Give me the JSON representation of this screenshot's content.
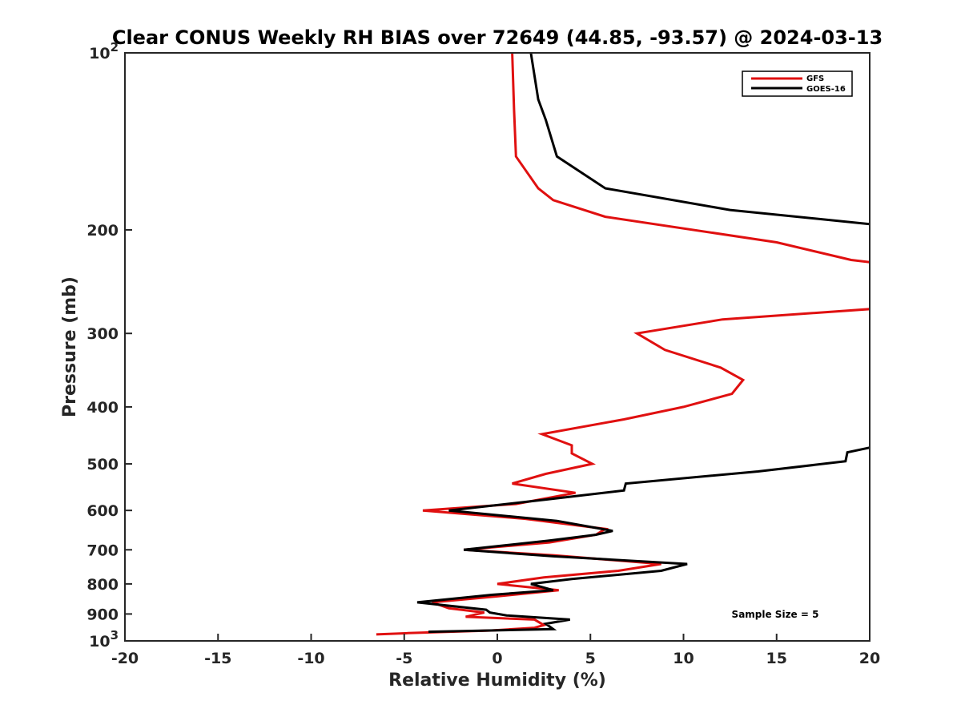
{
  "chart_data": {
    "type": "line",
    "title": "Clear CONUS Weekly RH BIAS over 72649 (44.85, -93.57) @ 2024-03-13",
    "xlabel": "Relative Humidity (%)",
    "ylabel": "Pressure (mb)",
    "xlim": [
      -20,
      20
    ],
    "ylim": [
      100,
      1000
    ],
    "y_scale": "log",
    "y_reversed": true,
    "x_ticks": [
      -20,
      -15,
      -10,
      -5,
      0,
      5,
      10,
      15,
      20
    ],
    "x_tick_labels": [
      "-20",
      "-15",
      "-10",
      "-5",
      "0",
      "5",
      "10",
      "15",
      "20"
    ],
    "y_ticks": [
      100,
      200,
      300,
      400,
      500,
      600,
      700,
      800,
      900,
      1000
    ],
    "y_tick_labels": [
      {
        "base": "10",
        "exp": "2"
      },
      {
        "base": "200",
        "exp": ""
      },
      {
        "base": "300",
        "exp": ""
      },
      {
        "base": "400",
        "exp": ""
      },
      {
        "base": "500",
        "exp": ""
      },
      {
        "base": "600",
        "exp": ""
      },
      {
        "base": "700",
        "exp": ""
      },
      {
        "base": "800",
        "exp": ""
      },
      {
        "base": "900",
        "exp": ""
      },
      {
        "base": "10",
        "exp": "3"
      }
    ],
    "grid": false,
    "legend_position": "top-right",
    "annotation": "Sample Size = 5",
    "series": [
      {
        "name": "GFS",
        "color": "#e01010",
        "points": [
          [
            0.8,
            100
          ],
          [
            0.9,
            125
          ],
          [
            1.0,
            150
          ],
          [
            2.2,
            170
          ],
          [
            3.0,
            178
          ],
          [
            5.8,
            190
          ],
          [
            15.0,
            210
          ],
          [
            19.0,
            225
          ],
          [
            20.5,
            228
          ],
          [
            20.5,
            272
          ],
          [
            12.1,
            284
          ],
          [
            7.5,
            300
          ],
          [
            9.0,
            320
          ],
          [
            12.0,
            343
          ],
          [
            13.2,
            360
          ],
          [
            12.6,
            380
          ],
          [
            10.0,
            400
          ],
          [
            6.8,
            420
          ],
          [
            2.4,
            445
          ],
          [
            4.0,
            465
          ],
          [
            4.0,
            480
          ],
          [
            5.1,
            500
          ],
          [
            2.6,
            520
          ],
          [
            0.8,
            540
          ],
          [
            4.2,
            560
          ],
          [
            1.0,
            585
          ],
          [
            -4.0,
            600
          ],
          [
            1.5,
            620
          ],
          [
            5.8,
            645
          ],
          [
            5.3,
            660
          ],
          [
            2.8,
            680
          ],
          [
            -1.8,
            700
          ],
          [
            3.0,
            715
          ],
          [
            8.8,
            740
          ],
          [
            6.5,
            760
          ],
          [
            2.5,
            780
          ],
          [
            0.0,
            800
          ],
          [
            3.3,
            820
          ],
          [
            0.0,
            840
          ],
          [
            -3.5,
            860
          ],
          [
            -2.6,
            880
          ],
          [
            -0.7,
            895
          ],
          [
            -1.7,
            910
          ],
          [
            2.0,
            920
          ],
          [
            2.5,
            940
          ],
          [
            2.0,
            950
          ],
          [
            -0.3,
            960
          ],
          [
            -4.8,
            970
          ],
          [
            -6.5,
            975
          ]
        ]
      },
      {
        "name": "GOES-16",
        "color": "#000000",
        "points": [
          [
            1.8,
            100
          ],
          [
            2.2,
            120
          ],
          [
            2.6,
            130
          ],
          [
            3.2,
            150
          ],
          [
            5.8,
            170
          ],
          [
            12.5,
            185
          ],
          [
            21.0,
            197
          ],
          [
            21.0,
            462
          ],
          [
            18.8,
            478
          ],
          [
            18.7,
            495
          ],
          [
            14.0,
            515
          ],
          [
            6.9,
            540
          ],
          [
            6.8,
            555
          ],
          [
            2.6,
            575
          ],
          [
            -2.6,
            600
          ],
          [
            3.2,
            625
          ],
          [
            6.2,
            650
          ],
          [
            5.3,
            660
          ],
          [
            2.8,
            675
          ],
          [
            -1.8,
            700
          ],
          [
            3.0,
            718
          ],
          [
            10.2,
            740
          ],
          [
            8.8,
            760
          ],
          [
            4.0,
            785
          ],
          [
            1.8,
            800
          ],
          [
            3.0,
            820
          ],
          [
            -0.3,
            835
          ],
          [
            -4.3,
            860
          ],
          [
            -0.6,
            885
          ],
          [
            -0.4,
            895
          ],
          [
            0.5,
            905
          ],
          [
            3.9,
            920
          ],
          [
            2.6,
            935
          ],
          [
            3.0,
            955
          ],
          [
            -3.7,
            965
          ]
        ]
      }
    ]
  }
}
